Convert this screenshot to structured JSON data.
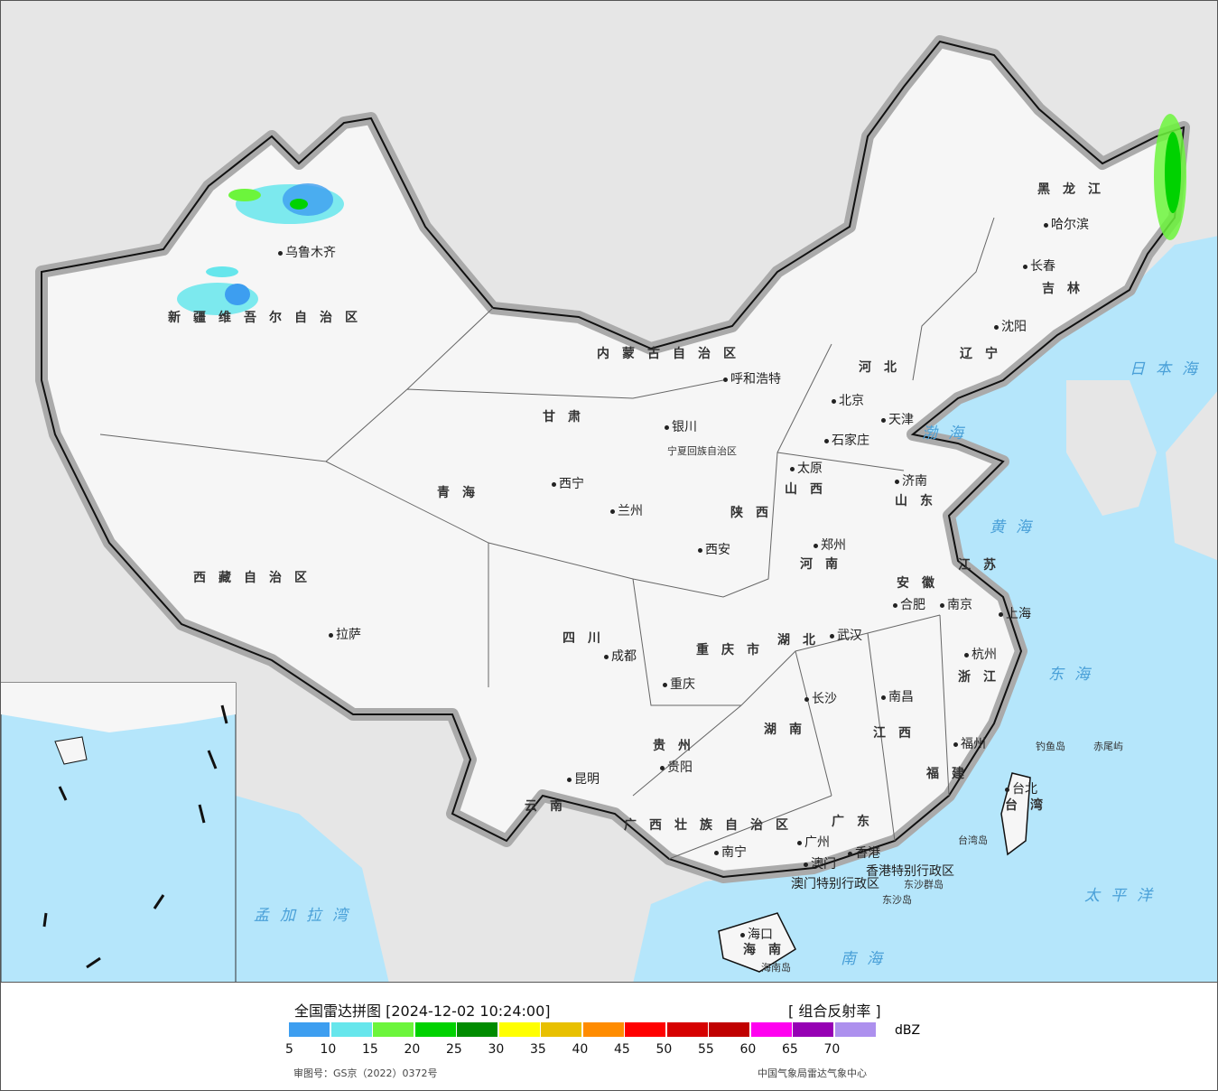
{
  "map": {
    "colors": {
      "background": "#e6e6e6",
      "sea": "#b5e6fb",
      "land": "#f6f6f6",
      "border": "#111",
      "radar_light": "#4aa3f0",
      "radar_cyan": "#66e6ec",
      "radar_green": "#00d200"
    },
    "provinces": [
      "新疆维吾尔自治区",
      "西藏自治区",
      "青海",
      "甘肃",
      "内蒙古自治区",
      "黑龙江",
      "吉林",
      "辽宁",
      "河北",
      "山西",
      "陕西",
      "河南",
      "山东",
      "江苏",
      "安徽",
      "湖北",
      "四川",
      "重庆市",
      "贵州",
      "云南",
      "湖南",
      "江西",
      "浙江",
      "福建",
      "广西壮族自治区",
      "广东",
      "海南",
      "台湾",
      "宁夏回族自治区"
    ],
    "cities": [
      "乌鲁木齐",
      "拉萨",
      "西宁",
      "兰州",
      "银川",
      "呼和浩特",
      "北京",
      "天津",
      "石家庄",
      "太原",
      "西安",
      "郑州",
      "济南",
      "南京",
      "上海",
      "合肥",
      "杭州",
      "武汉",
      "成都",
      "重庆",
      "长沙",
      "南昌",
      "福州",
      "贵阳",
      "昆明",
      "南宁",
      "广州",
      "香港",
      "澳门",
      "海口",
      "哈尔滨",
      "长春",
      "沈阳",
      "台北"
    ],
    "seas": [
      "渤海",
      "黄海",
      "东海",
      "日本海",
      "南海",
      "太平洋",
      "孟加拉湾"
    ],
    "islands": [
      "钓鱼岛",
      "赤尾屿",
      "台湾岛",
      "东沙群岛",
      "东沙岛",
      "海南岛"
    ],
    "special": [
      "香港特别行政区",
      "澳门特别行政区"
    ]
  },
  "legend": {
    "title": "全国雷达拼图 [2024-12-02 10:24:00]",
    "product": "[ 组合反射率 ]",
    "unit": "dBZ",
    "ticks": [
      "5",
      "10",
      "15",
      "20",
      "25",
      "30",
      "35",
      "40",
      "45",
      "50",
      "55",
      "60",
      "65",
      "70"
    ],
    "colors": [
      "#3d9ef0",
      "#66e6ec",
      "#6cf53c",
      "#00d200",
      "#008c00",
      "#ffff00",
      "#e8c000",
      "#ff8c00",
      "#ff0000",
      "#d60000",
      "#c00000",
      "#ff00f0",
      "#9600b4",
      "#ad90ee"
    ],
    "approval": "审图号：GS京（2022）0372号",
    "source": "中国气象局雷达气象中心"
  }
}
